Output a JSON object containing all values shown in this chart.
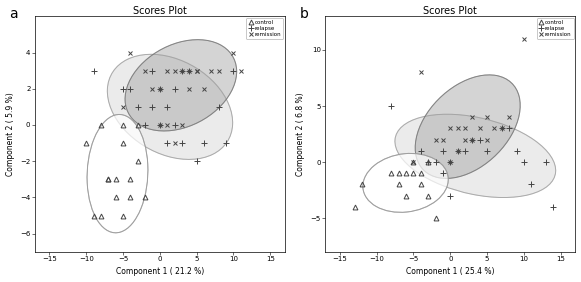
{
  "title": "Scores Plot",
  "panel_a_label": "a",
  "panel_b_label": "b",
  "xlabel_a": "Component 1 ( 21.2 %)",
  "ylabel_a": "Component 2 ( 5.9 %)",
  "xlabel_b": "Component 1 ( 25.4 %)",
  "ylabel_b": "Component 2 ( 6.8 %)",
  "xlim": [
    -17,
    17
  ],
  "ylim_a": [
    -7,
    6
  ],
  "ylim_b": [
    -8,
    13
  ],
  "xticks": [
    -15,
    -10,
    -5,
    0,
    5,
    10,
    15
  ],
  "yticks_a": [
    -6,
    -4,
    -2,
    0,
    2,
    4
  ],
  "yticks_b": [
    -5,
    0,
    5,
    10
  ],
  "legend_labels": [
    "control",
    "relapse",
    "remission"
  ],
  "control_a_x": [
    -10,
    -9,
    -8,
    -8,
    -7,
    -7,
    -6,
    -6,
    -5,
    -5,
    -5,
    -4,
    -4,
    -3,
    -3,
    -2
  ],
  "control_a_y": [
    -1,
    -5,
    -5,
    0,
    -3,
    -3,
    -3,
    -4,
    -5,
    -1,
    0,
    -3,
    -4,
    0,
    -2,
    -4
  ],
  "relapse_a_x": [
    -9,
    -5,
    -4,
    -3,
    -2,
    -1,
    -1,
    0,
    0,
    1,
    1,
    2,
    2,
    3,
    3,
    4,
    5,
    6,
    8,
    9,
    10
  ],
  "relapse_a_y": [
    3,
    2,
    2,
    1,
    0,
    1,
    3,
    2,
    0,
    1,
    -1,
    0,
    2,
    -1,
    3,
    3,
    -2,
    -1,
    1,
    -1,
    3
  ],
  "remission_a_x": [
    -5,
    -4,
    -2,
    -1,
    0,
    0,
    1,
    1,
    2,
    2,
    3,
    3,
    4,
    4,
    5,
    5,
    6,
    7,
    8,
    10,
    11
  ],
  "remission_a_y": [
    1,
    4,
    3,
    2,
    0,
    2,
    0,
    3,
    -1,
    3,
    0,
    3,
    2,
    3,
    3,
    3,
    2,
    3,
    3,
    4,
    3
  ],
  "control_b_x": [
    -13,
    -12,
    -8,
    -7,
    -7,
    -6,
    -6,
    -5,
    -5,
    -4,
    -4,
    -3,
    -3,
    -2
  ],
  "control_b_y": [
    -4,
    -2,
    -1,
    -1,
    -2,
    -3,
    -1,
    0,
    -1,
    -1,
    -2,
    -3,
    0,
    -5
  ],
  "relapse_b_x": [
    -8,
    -4,
    -3,
    -2,
    -1,
    -1,
    0,
    0,
    1,
    2,
    3,
    4,
    5,
    7,
    8,
    9,
    10,
    11,
    13,
    14
  ],
  "relapse_b_y": [
    5,
    1,
    0,
    0,
    -1,
    1,
    0,
    -3,
    1,
    1,
    2,
    2,
    1,
    3,
    3,
    1,
    0,
    -2,
    0,
    -4
  ],
  "remission_b_x": [
    -5,
    -4,
    -2,
    -1,
    0,
    0,
    1,
    1,
    2,
    2,
    3,
    3,
    4,
    5,
    5,
    6,
    7,
    8,
    10
  ],
  "remission_b_y": [
    0,
    8,
    2,
    2,
    0,
    3,
    3,
    1,
    2,
    3,
    2,
    4,
    3,
    4,
    2,
    3,
    3,
    4,
    11
  ],
  "ellipse_relapse_color": "#c8c8c8",
  "ellipse_remission_color": "#a0a0a0",
  "ellipse_control_edge": "#b0b0b0",
  "n_std": 1.8
}
